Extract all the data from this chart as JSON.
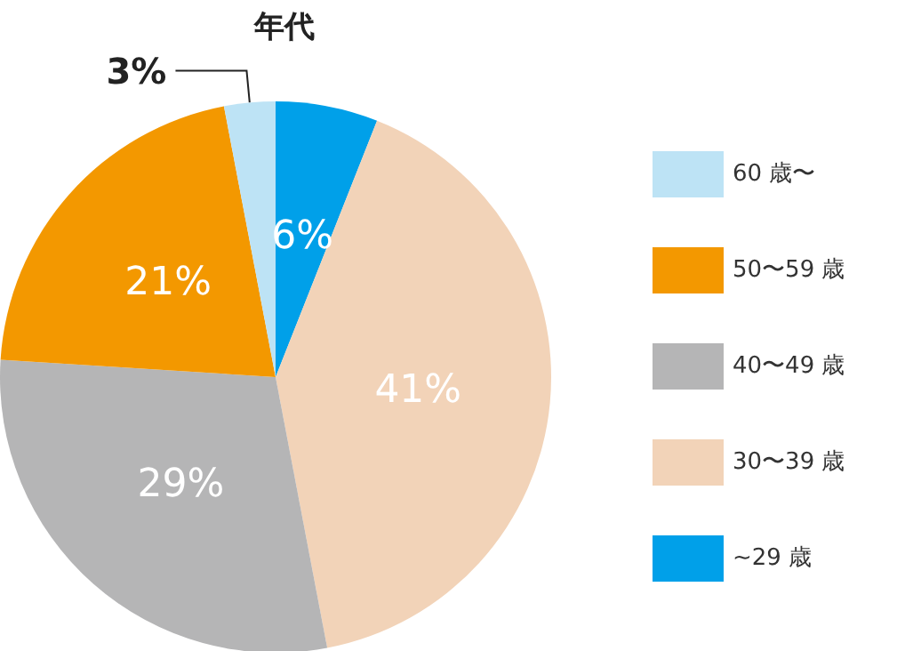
{
  "chart_data": {
    "type": "pie",
    "title": "年代",
    "categories": [
      "~29 歳",
      "30〜39 歳",
      "40〜49 歳",
      "50〜59 歳",
      "60 歳〜"
    ],
    "values": [
      6,
      41,
      29,
      21,
      3
    ],
    "colors": [
      "#00a0e9",
      "#f2d3b8",
      "#b5b5b6",
      "#f39800",
      "#bde3f5"
    ],
    "value_labels": [
      "6%",
      "41%",
      "29%",
      "21%",
      "3%"
    ],
    "legend": "right"
  }
}
